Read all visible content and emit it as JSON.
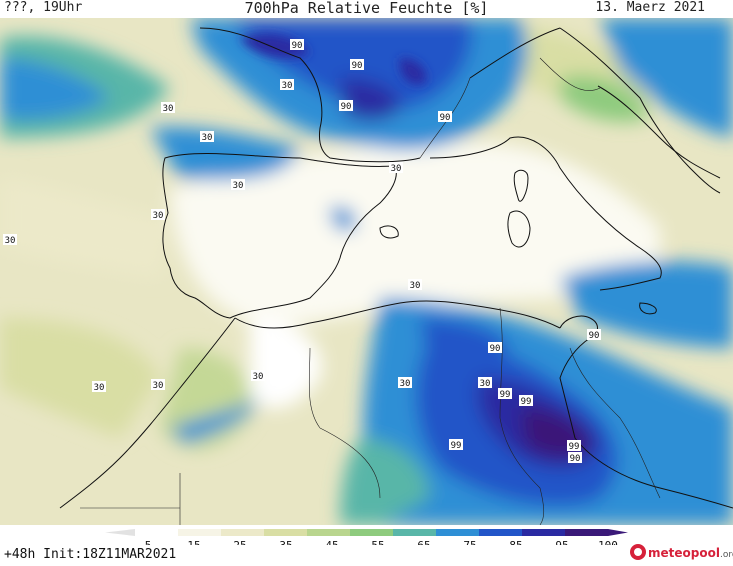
{
  "header": {
    "left": "???, 19Uhr",
    "title": "700hPa Relative Feuchte [%]",
    "date": "13. Maerz 2021"
  },
  "footer": {
    "init": "+48h Init:18Z11MAR2021",
    "brand_main": "meteopool",
    "brand_suffix": ".org"
  },
  "legend": {
    "ticks": [
      "5",
      "15",
      "25",
      "35",
      "45",
      "55",
      "65",
      "75",
      "85",
      "95",
      "100"
    ],
    "colors": [
      "#ffffff",
      "#f6f4e6",
      "#ece9c9",
      "#d9dea4",
      "#b9d58e",
      "#8ecb7e",
      "#59b6a8",
      "#2e8fd5",
      "#2255c8",
      "#2a2aa2",
      "#3a1978"
    ]
  },
  "contour_labels": [
    {
      "value": "90"
    },
    {
      "value": "90"
    },
    {
      "value": "90"
    },
    {
      "value": "90"
    },
    {
      "value": "30"
    },
    {
      "value": "30"
    },
    {
      "value": "30"
    },
    {
      "value": "30"
    },
    {
      "value": "30"
    },
    {
      "value": "30"
    },
    {
      "value": "30"
    },
    {
      "value": "30"
    },
    {
      "value": "30"
    },
    {
      "value": "30"
    },
    {
      "value": "30"
    },
    {
      "value": "30"
    },
    {
      "value": "30"
    },
    {
      "value": "90"
    },
    {
      "value": "90"
    },
    {
      "value": "99"
    },
    {
      "value": "99"
    },
    {
      "value": "99"
    },
    {
      "value": "99"
    },
    {
      "value": "90"
    }
  ]
}
